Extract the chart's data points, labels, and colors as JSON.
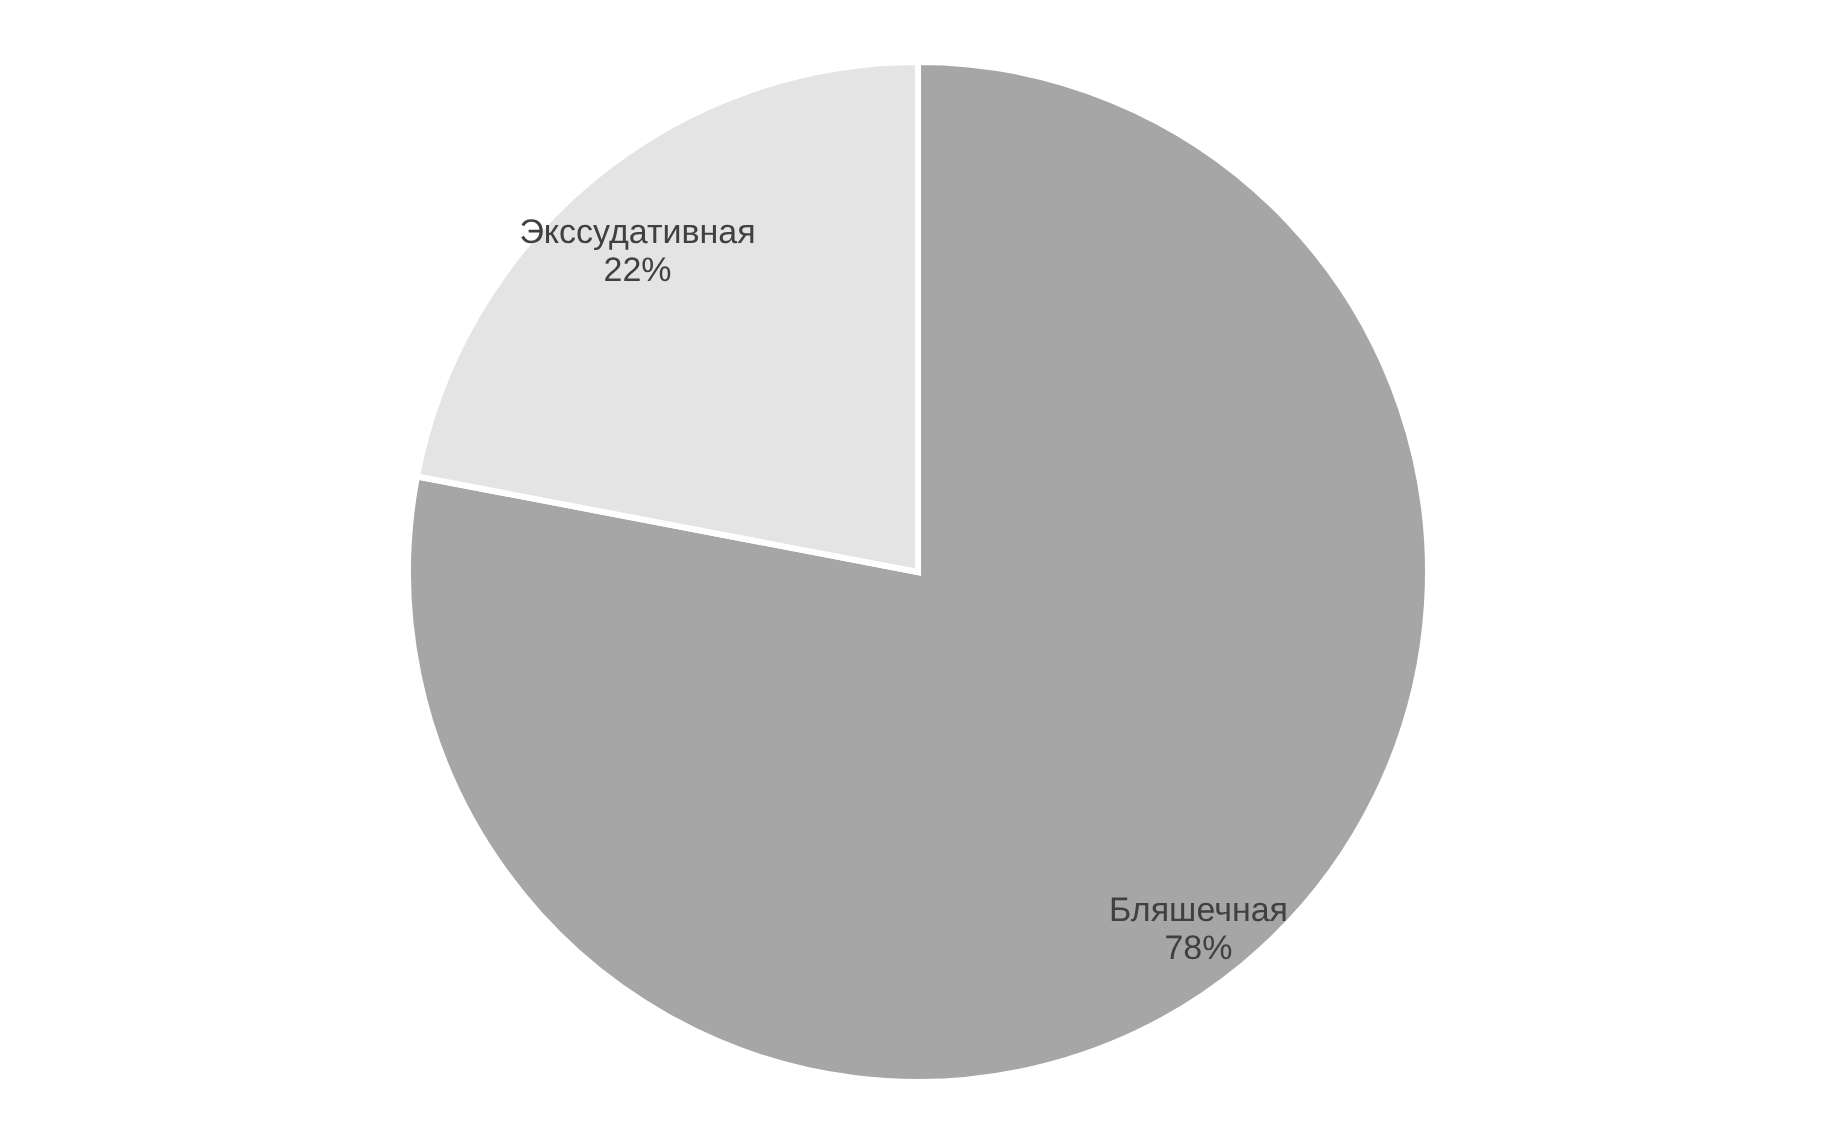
{
  "chart_data": {
    "type": "pie",
    "categories": [
      "Бляшечная",
      "Экссудативная"
    ],
    "values": [
      78,
      22
    ],
    "value_labels": [
      "78%",
      "22%"
    ],
    "colors": [
      "#a6a6a6",
      "#e4e4e4"
    ],
    "legend": false
  }
}
